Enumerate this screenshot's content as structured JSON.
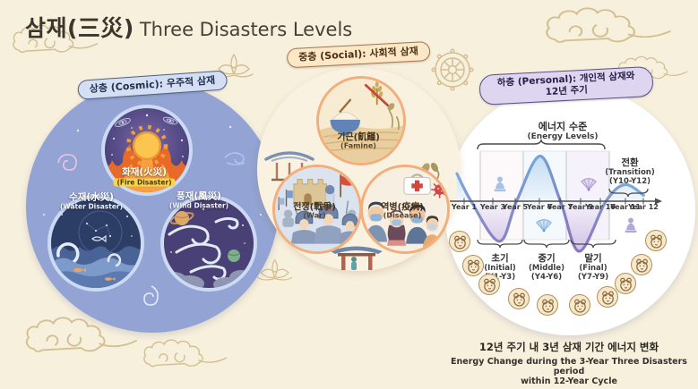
{
  "title": {
    "korean": "삼재(三災)",
    "english": "Three Disasters Levels"
  },
  "levels": {
    "cosmic": {
      "badge": "상층 (Cosmic): 우주적 삼재",
      "items": [
        {
          "korean": "화재(火災)",
          "english": "(Fire Disaster)"
        },
        {
          "korean": "수재(水災)",
          "english": "(Water Disaster)"
        },
        {
          "korean": "풍재(風災)",
          "english": "(Wind Disaster)"
        }
      ]
    },
    "social": {
      "badge": "중층 (Social): 사회적 삼재",
      "items": [
        {
          "korean": "기근(飢饉)",
          "english": "(Famine)"
        },
        {
          "korean": "전쟁(戰爭)",
          "english": "(War)"
        },
        {
          "korean": "역병(疫病)",
          "english": "(Disease)"
        }
      ]
    },
    "personal": {
      "badge_line1": "하층 (Personal): 개인적 삼재와",
      "badge_line2": "12년 주기",
      "zodiac_animals": [
        "rat",
        "ox",
        "tiger",
        "rabbit",
        "dragon",
        "snake",
        "horse",
        "goat",
        "rooster",
        "pig"
      ]
    }
  },
  "caption": {
    "korean": "12년 주기 내 3년 삼재 기간 에너지 변화",
    "english_line1": "Energy Change during the 3-Year Three Disasters period",
    "english_line2": "within 12-Year Cycle"
  },
  "chart_data": {
    "type": "line",
    "title_korean": "에너지 수준",
    "title_english": "(Energy Levels)",
    "x_tick_labels": [
      "Year 1",
      "Year 3",
      "Year 5",
      "Year 6",
      "Year 7",
      "Year 9",
      "Year 10",
      "Year 11",
      "Year 12"
    ],
    "x_range_years": [
      0,
      12
    ],
    "ylim": [
      -1,
      1
    ],
    "ylabel": "relative energy (axis unlabeled)",
    "grid": "three light phase panels behind curve, Y10-Y12 open transition zone",
    "legend_position": "none",
    "wave": [
      {
        "year": 0.0,
        "v": 0.55
      },
      {
        "year": 0.9,
        "v": 0.0
      },
      {
        "year": 2.7,
        "v": -0.8
      },
      {
        "year": 3.8,
        "v": 0.0
      },
      {
        "year": 5.3,
        "v": 0.9
      },
      {
        "year": 6.6,
        "v": 0.0
      },
      {
        "year": 7.8,
        "v": -1.0
      },
      {
        "year": 9.5,
        "v": 0.0
      },
      {
        "year": 10.7,
        "v": 0.33
      },
      {
        "year": 11.9,
        "v": 0.12
      }
    ],
    "phases": [
      {
        "korean": "초기",
        "english": "(Initial)",
        "years": "(Y1-Y3)"
      },
      {
        "korean": "중기",
        "english": "(Middle)",
        "years": "(Y4-Y6)"
      },
      {
        "korean": "말기",
        "english": "(Final)",
        "years": "(Y7-Y9)"
      }
    ],
    "transition": {
      "korean": "전환",
      "english": "(Transition)",
      "years": "(Y10-Y12)"
    }
  }
}
